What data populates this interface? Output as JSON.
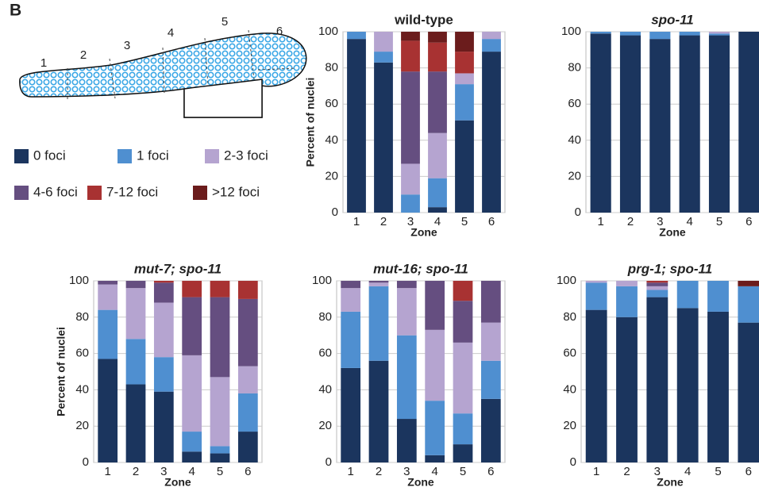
{
  "figure": {
    "panel_label": "B",
    "diagram_zones": [
      "1",
      "2",
      "3",
      "4",
      "5",
      "6"
    ]
  },
  "chart_data": [
    {
      "type": "bar",
      "stacked": true,
      "title": "wild-type",
      "ylabel": "Percent of nuclei",
      "xlabel": "Zone",
      "categories": [
        "1",
        "2",
        "3",
        "4",
        "5",
        "6"
      ],
      "ylim": [
        0,
        100
      ],
      "yticks": [
        0,
        20,
        40,
        60,
        80,
        100
      ],
      "grid": true,
      "series": [
        {
          "name": "0 foci",
          "color": "#1b355e",
          "values": [
            96,
            83,
            0,
            3,
            51,
            89
          ]
        },
        {
          "name": "1 foci",
          "color": "#4f8fd0",
          "values": [
            4,
            6,
            10,
            16,
            20,
            7
          ]
        },
        {
          "name": "2-3 foci",
          "color": "#b5a4d0",
          "values": [
            0,
            11,
            17,
            25,
            6,
            4
          ]
        },
        {
          "name": "4-6 foci",
          "color": "#654e80",
          "values": [
            0,
            0,
            51,
            34,
            0,
            0
          ]
        },
        {
          "name": "7-12 foci",
          "color": "#a83232",
          "values": [
            0,
            0,
            17,
            16,
            12,
            0
          ]
        },
        {
          "name": ">12 foci",
          "color": "#6b1c1c",
          "values": [
            0,
            0,
            5,
            6,
            11,
            0
          ]
        }
      ]
    },
    {
      "type": "bar",
      "stacked": true,
      "title": "spo-11",
      "xlabel": "Zone",
      "categories": [
        "1",
        "2",
        "3",
        "4",
        "5",
        "6"
      ],
      "ylim": [
        0,
        100
      ],
      "yticks": [
        0,
        20,
        40,
        60,
        80,
        100
      ],
      "grid": true,
      "series": [
        {
          "values": [
            99,
            98,
            96,
            98,
            98,
            100
          ]
        },
        {
          "values": [
            1,
            2,
            4,
            2,
            1,
            0
          ]
        },
        {
          "values": [
            0,
            0,
            0,
            0,
            1,
            0
          ]
        },
        {
          "values": [
            0,
            0,
            0,
            0,
            0,
            0
          ]
        },
        {
          "values": [
            0,
            0,
            0,
            0,
            0,
            0
          ]
        },
        {
          "values": [
            0,
            0,
            0,
            0,
            0,
            0
          ]
        }
      ]
    },
    {
      "type": "bar",
      "stacked": true,
      "title": "mut-7; spo-11",
      "ylabel": "Percent of nuclei",
      "xlabel": "Zone",
      "categories": [
        "1",
        "2",
        "3",
        "4",
        "5",
        "6"
      ],
      "ylim": [
        0,
        100
      ],
      "yticks": [
        0,
        20,
        40,
        60,
        80,
        100
      ],
      "grid": true,
      "series": [
        {
          "values": [
            57,
            43,
            39,
            6,
            5,
            17
          ]
        },
        {
          "values": [
            27,
            25,
            19,
            11,
            4,
            21
          ]
        },
        {
          "values": [
            14,
            28,
            30,
            42,
            38,
            15
          ]
        },
        {
          "values": [
            2,
            4,
            11,
            32,
            44,
            37
          ]
        },
        {
          "values": [
            0,
            0,
            1,
            9,
            9,
            10
          ]
        },
        {
          "values": [
            0,
            0,
            0,
            0,
            0,
            0
          ]
        }
      ]
    },
    {
      "type": "bar",
      "stacked": true,
      "title": "mut-16; spo-11",
      "xlabel": "Zone",
      "categories": [
        "1",
        "2",
        "3",
        "4",
        "5",
        "6"
      ],
      "ylim": [
        0,
        100
      ],
      "yticks": [
        0,
        20,
        40,
        60,
        80,
        100
      ],
      "grid": true,
      "series": [
        {
          "values": [
            52,
            56,
            24,
            4,
            10,
            35
          ]
        },
        {
          "values": [
            31,
            41,
            46,
            30,
            17,
            21
          ]
        },
        {
          "values": [
            13,
            2,
            26,
            39,
            39,
            21
          ]
        },
        {
          "values": [
            4,
            1,
            4,
            27,
            23,
            23
          ]
        },
        {
          "values": [
            0,
            0,
            0,
            0,
            11,
            0
          ]
        },
        {
          "values": [
            0,
            0,
            0,
            0,
            0,
            0
          ]
        }
      ]
    },
    {
      "type": "bar",
      "stacked": true,
      "title": "prg-1; spo-11",
      "xlabel": "Zone",
      "categories": [
        "1",
        "2",
        "3",
        "4",
        "5",
        "6"
      ],
      "ylim": [
        0,
        100
      ],
      "yticks": [
        0,
        20,
        40,
        60,
        80,
        100
      ],
      "grid": true,
      "series": [
        {
          "values": [
            84,
            80,
            91,
            85,
            83,
            77
          ]
        },
        {
          "values": [
            15,
            17,
            4,
            15,
            17,
            20
          ]
        },
        {
          "values": [
            1,
            3,
            2,
            0,
            0,
            0
          ]
        },
        {
          "values": [
            0,
            0,
            2,
            0,
            0,
            0
          ]
        },
        {
          "values": [
            0,
            0,
            1,
            0,
            0,
            0
          ]
        },
        {
          "values": [
            0,
            0,
            0,
            0,
            0,
            3
          ]
        }
      ]
    }
  ]
}
